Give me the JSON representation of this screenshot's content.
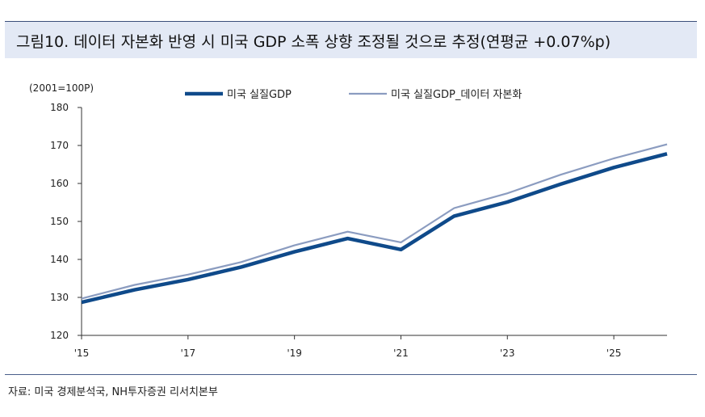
{
  "title": "그림10. 데이터 자본화 반영 시 미국 GDP 소폭 상향 조정될 것으로 추정(연평균 +0.07%p)",
  "source": "자료: 미국 경제분석국, NH투자증권 리서치본부",
  "colors": {
    "series_actual": "#0f4a8a",
    "series_adjusted": "#8b9cc0",
    "axis": "#333333"
  },
  "chart_data": {
    "type": "line",
    "unit_label": "(2001=100P)",
    "x": [
      2015,
      2016,
      2017,
      2018,
      2019,
      2020,
      2021,
      2022,
      2023,
      2024,
      2025,
      2026
    ],
    "x_tick_values": [
      2015,
      2017,
      2019,
      2021,
      2023,
      2025
    ],
    "x_tick_labels": [
      "'15",
      "'17",
      "'19",
      "'21",
      "'23",
      "'25"
    ],
    "ylim": [
      120,
      180
    ],
    "y_ticks": [
      120,
      130,
      140,
      150,
      160,
      170,
      180
    ],
    "legend_position": "top",
    "series": [
      {
        "name": "미국 실질GDP",
        "values": [
          128.7,
          132.0,
          134.7,
          138.0,
          142.0,
          145.5,
          142.6,
          151.4,
          155.1,
          159.8,
          164.2,
          167.8
        ]
      },
      {
        "name": "미국 실질GDP_데이터 자본화",
        "values": [
          129.7,
          133.3,
          136.0,
          139.3,
          143.7,
          147.3,
          144.5,
          153.5,
          157.4,
          162.3,
          166.6,
          170.3
        ]
      }
    ]
  }
}
